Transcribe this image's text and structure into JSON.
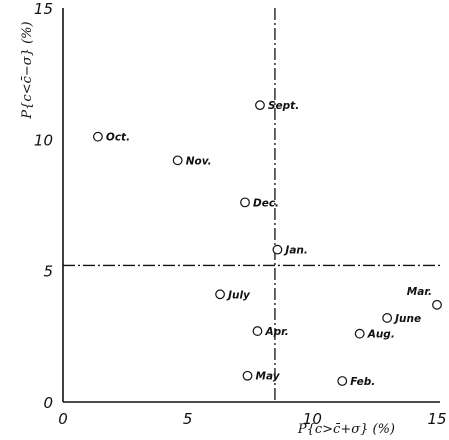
{
  "chart_data": {
    "type": "scatter",
    "xlabel": "P{c>c̄+σ} (%)",
    "ylabel": "P{c<c̄−σ} (%)",
    "xlim": [
      0,
      15
    ],
    "ylim": [
      0,
      15
    ],
    "x_ticks": [
      "0",
      "5",
      "10",
      "15"
    ],
    "y_ticks": [
      "0",
      "5",
      "10",
      "15"
    ],
    "reference_lines": {
      "vertical_x": 8.5,
      "horizontal_y": 5.2
    },
    "points": [
      {
        "label": "Oct.",
        "x": 1.4,
        "y": 10.1
      },
      {
        "label": "Nov.",
        "x": 4.6,
        "y": 9.2
      },
      {
        "label": "Dec.",
        "x": 7.3,
        "y": 7.6
      },
      {
        "label": "Sept.",
        "x": 7.9,
        "y": 11.3
      },
      {
        "label": "Jan.",
        "x": 8.6,
        "y": 5.8
      },
      {
        "label": "July",
        "x": 6.3,
        "y": 4.1
      },
      {
        "label": "Apr.",
        "x": 7.8,
        "y": 2.7
      },
      {
        "label": "May",
        "x": 7.4,
        "y": 1.0
      },
      {
        "label": "Feb.",
        "x": 11.2,
        "y": 0.8
      },
      {
        "label": "Aug.",
        "x": 11.9,
        "y": 2.6
      },
      {
        "label": "June",
        "x": 13.0,
        "y": 3.2
      },
      {
        "label": "Mar.",
        "x": 15.0,
        "y": 3.7
      }
    ]
  }
}
